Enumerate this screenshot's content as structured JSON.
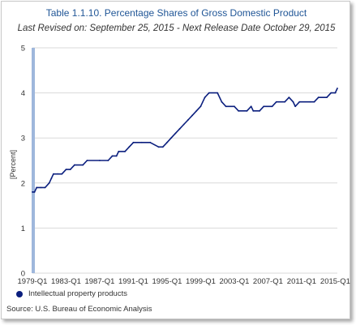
{
  "header": {
    "title": "Table 1.1.10. Percentage Shares of Gross Domestic Product",
    "subtitle": "Last Revised on: September 25, 2015 - Next Release Date October 29, 2015"
  },
  "source": "Source: U.S. Bureau of Economic  Analysis",
  "chart_data": {
    "type": "line",
    "title": "Table 1.1.10. Percentage Shares of Gross Domestic Product",
    "ylabel": "[Percent]",
    "xlabel": "",
    "ylim": [
      0,
      5
    ],
    "yticks": [
      0,
      1,
      2,
      3,
      4,
      5
    ],
    "xticks": [
      "1979-Q1",
      "1983-Q1",
      "1987-Q1",
      "1991-Q1",
      "1995-Q1",
      "1999-Q1",
      "2003-Q1",
      "2007-Q1",
      "2011-Q1",
      "2015-Q1"
    ],
    "grid": true,
    "legend": "bottom-left",
    "color": "#0b1f7e",
    "series": [
      {
        "name": "Intellectual property products",
        "points": [
          [
            "1979-Q1",
            1.8
          ],
          [
            "1979-Q2",
            1.8
          ],
          [
            "1979-Q3",
            1.9
          ],
          [
            "1980-Q1",
            1.9
          ],
          [
            "1980-Q3",
            1.9
          ],
          [
            "1981-Q1",
            2.0
          ],
          [
            "1981-Q2",
            2.1
          ],
          [
            "1981-Q3",
            2.2
          ],
          [
            "1982-Q1",
            2.2
          ],
          [
            "1982-Q3",
            2.2
          ],
          [
            "1983-Q1",
            2.3
          ],
          [
            "1983-Q3",
            2.3
          ],
          [
            "1984-Q1",
            2.4
          ],
          [
            "1985-Q1",
            2.4
          ],
          [
            "1985-Q3",
            2.5
          ],
          [
            "1987-Q1",
            2.5
          ],
          [
            "1988-Q1",
            2.5
          ],
          [
            "1988-Q3",
            2.6
          ],
          [
            "1989-Q1",
            2.6
          ],
          [
            "1989-Q2",
            2.7
          ],
          [
            "1990-Q1",
            2.7
          ],
          [
            "1990-Q3",
            2.8
          ],
          [
            "1991-Q1",
            2.9
          ],
          [
            "1992-Q1",
            2.9
          ],
          [
            "1993-Q1",
            2.9
          ],
          [
            "1994-Q1",
            2.8
          ],
          [
            "1994-Q3",
            2.8
          ],
          [
            "1995-Q1",
            2.9
          ],
          [
            "1995-Q3",
            3.0
          ],
          [
            "1996-Q1",
            3.1
          ],
          [
            "1996-Q3",
            3.2
          ],
          [
            "1997-Q1",
            3.3
          ],
          [
            "1997-Q3",
            3.4
          ],
          [
            "1998-Q1",
            3.5
          ],
          [
            "1998-Q3",
            3.6
          ],
          [
            "1999-Q1",
            3.7
          ],
          [
            "1999-Q3",
            3.9
          ],
          [
            "2000-Q1",
            4.0
          ],
          [
            "2001-Q1",
            4.0
          ],
          [
            "2001-Q3",
            3.8
          ],
          [
            "2002-Q1",
            3.7
          ],
          [
            "2003-Q1",
            3.7
          ],
          [
            "2003-Q3",
            3.6
          ],
          [
            "2004-Q3",
            3.6
          ],
          [
            "2005-Q1",
            3.7
          ],
          [
            "2005-Q2",
            3.6
          ],
          [
            "2006-Q1",
            3.6
          ],
          [
            "2006-Q3",
            3.7
          ],
          [
            "2007-Q3",
            3.7
          ],
          [
            "2008-Q1",
            3.8
          ],
          [
            "2009-Q1",
            3.8
          ],
          [
            "2009-Q3",
            3.9
          ],
          [
            "2010-Q1",
            3.8
          ],
          [
            "2010-Q2",
            3.7
          ],
          [
            "2010-Q4",
            3.8
          ],
          [
            "2012-Q1",
            3.8
          ],
          [
            "2012-Q3",
            3.8
          ],
          [
            "2013-Q1",
            3.9
          ],
          [
            "2014-Q1",
            3.9
          ],
          [
            "2014-Q3",
            4.0
          ],
          [
            "2015-Q1",
            4.0
          ],
          [
            "2015-Q2",
            4.1
          ]
        ]
      }
    ]
  }
}
